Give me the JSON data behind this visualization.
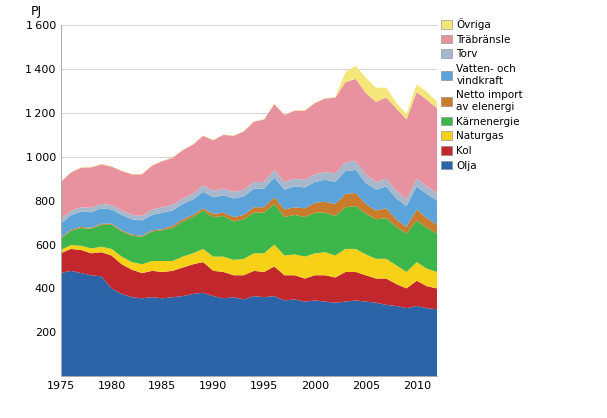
{
  "years": [
    1975,
    1976,
    1977,
    1978,
    1979,
    1980,
    1981,
    1982,
    1983,
    1984,
    1985,
    1986,
    1987,
    1988,
    1989,
    1990,
    1991,
    1992,
    1993,
    1994,
    1995,
    1996,
    1997,
    1998,
    1999,
    2000,
    2001,
    2002,
    2003,
    2004,
    2005,
    2006,
    2007,
    2008,
    2009,
    2010,
    2011,
    2012
  ],
  "olja": [
    470,
    480,
    470,
    460,
    455,
    400,
    375,
    360,
    355,
    360,
    355,
    360,
    365,
    375,
    380,
    365,
    355,
    360,
    350,
    365,
    360,
    365,
    345,
    350,
    340,
    345,
    340,
    335,
    340,
    345,
    340,
    335,
    325,
    320,
    310,
    320,
    310,
    305
  ],
  "kol": [
    90,
    100,
    105,
    100,
    110,
    150,
    135,
    125,
    115,
    120,
    120,
    120,
    130,
    135,
    140,
    115,
    120,
    100,
    110,
    115,
    115,
    135,
    115,
    110,
    105,
    115,
    120,
    115,
    135,
    130,
    120,
    110,
    120,
    100,
    90,
    115,
    100,
    95
  ],
  "naturgas": [
    15,
    18,
    20,
    22,
    25,
    30,
    35,
    35,
    40,
    45,
    50,
    45,
    50,
    50,
    60,
    65,
    70,
    70,
    75,
    80,
    85,
    100,
    90,
    95,
    100,
    100,
    105,
    100,
    105,
    105,
    95,
    90,
    90,
    85,
    75,
    85,
    80,
    75
  ],
  "karnenergie": [
    50,
    65,
    80,
    90,
    100,
    110,
    115,
    120,
    125,
    135,
    140,
    150,
    160,
    165,
    175,
    180,
    185,
    175,
    180,
    185,
    185,
    185,
    175,
    180,
    180,
    185,
    180,
    180,
    190,
    195,
    185,
    180,
    185,
    175,
    175,
    190,
    185,
    175
  ],
  "netto_import": [
    5,
    5,
    5,
    5,
    5,
    5,
    5,
    5,
    5,
    5,
    5,
    10,
    10,
    10,
    10,
    15,
    15,
    20,
    20,
    25,
    25,
    30,
    35,
    35,
    40,
    45,
    50,
    55,
    60,
    60,
    45,
    40,
    45,
    35,
    30,
    50,
    45,
    40
  ],
  "vatten_vindkraft": [
    65,
    65,
    70,
    70,
    70,
    65,
    70,
    70,
    70,
    70,
    75,
    70,
    70,
    70,
    75,
    75,
    80,
    85,
    85,
    85,
    85,
    90,
    90,
    95,
    95,
    95,
    100,
    100,
    105,
    105,
    95,
    95,
    100,
    95,
    95,
    105,
    110,
    110
  ],
  "torv": [
    20,
    20,
    20,
    20,
    20,
    20,
    20,
    20,
    20,
    25,
    25,
    25,
    25,
    25,
    30,
    30,
    30,
    30,
    30,
    30,
    30,
    35,
    35,
    35,
    35,
    35,
    35,
    40,
    40,
    40,
    40,
    35,
    35,
    35,
    30,
    35,
    35,
    35
  ],
  "trabransle": [
    170,
    175,
    180,
    185,
    180,
    175,
    180,
    185,
    190,
    200,
    210,
    215,
    220,
    225,
    225,
    230,
    245,
    255,
    265,
    275,
    285,
    300,
    305,
    310,
    315,
    325,
    335,
    345,
    365,
    375,
    370,
    365,
    370,
    375,
    365,
    395,
    395,
    385
  ],
  "ovriga": [
    2,
    2,
    2,
    2,
    2,
    2,
    2,
    2,
    2,
    2,
    2,
    2,
    2,
    2,
    2,
    2,
    2,
    2,
    2,
    2,
    2,
    2,
    2,
    2,
    2,
    2,
    2,
    2,
    45,
    60,
    70,
    65,
    45,
    25,
    25,
    35,
    35,
    30
  ],
  "colors": {
    "olja": "#2B65A8",
    "kol": "#C1272D",
    "naturgas": "#F7D117",
    "karnenergie": "#3CB54A",
    "netto_import": "#C97C2C",
    "vatten_vindkraft": "#5BA3D9",
    "torv": "#A8B8CC",
    "trabransle": "#E8929F",
    "ovriga": "#F5E67A"
  },
  "legend_labels": {
    "ovriga": "Övriga",
    "trabransle": "Träbränsle",
    "torv": "Torv",
    "vatten_vindkraft": "Vatten- och\nvindkraft",
    "netto_import": "Netto import\nav elenergi",
    "karnenergie": "Kärnenergie",
    "naturgas": "Naturgas",
    "kol": "Kol",
    "olja": "Olja"
  },
  "ylabel": "PJ",
  "ylim": [
    0,
    1600
  ],
  "yticks": [
    0,
    200,
    400,
    600,
    800,
    1000,
    1200,
    1400,
    1600
  ],
  "ytick_labels": [
    "",
    "200",
    "400",
    "600",
    "800",
    "1 000",
    "1 200",
    "1 400",
    "1 600"
  ],
  "xlim": [
    1975,
    2012
  ],
  "xticks": [
    1975,
    1980,
    1985,
    1990,
    1995,
    2000,
    2005,
    2010
  ]
}
